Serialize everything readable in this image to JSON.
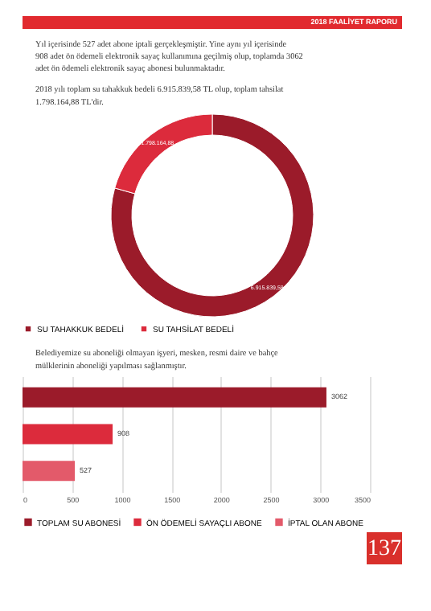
{
  "chart_data": [
    {
      "type": "donut",
      "categories": [
        "SU TAHAKKUK BEDELİ",
        "SU TAHSİLAT BEDELİ"
      ],
      "values": [
        6915839.58,
        1798164.88
      ],
      "colors": [
        "#9b1b2a",
        "#dc2b3c"
      ],
      "value_labels": [
        "6.915.839,58",
        "1.798.164,88"
      ],
      "legend": "bottom",
      "annotations": [
        "2018 FAALİYET RAPORU",
        "Yıl içerisinde 527 adet abone iptali gerçekleşmiştir. Yine aynı yıl içerisinde 908 adet ön ödemeli elektronik sayaç kullanımına geçilmiş olup, toplamda 3062 adet ön ödemeli elektronik sayaç abonesi bulunmaktadır.",
        "2018 yılı toplam su tahakkuk bedeli 6.915.839,58 TL olup, toplam tahsilat 1.798.164,88 TL'dir."
      ]
    },
    {
      "type": "bar",
      "orientation": "horizontal",
      "categories": [
        null,
        null,
        null
      ],
      "series": [
        {
          "name": "TOPLAM SU ABONESİ",
          "color": "#9b1b2a",
          "values": [
            3062,
            null,
            null
          ]
        },
        {
          "name": "ÖN ÖDEMELİ SAYAÇLI ABONE",
          "color": "#dc2b3c",
          "values": [
            null,
            908,
            null
          ]
        },
        {
          "name": "İPTAL OLAN ABONE",
          "color": "#e35a6a",
          "values": [
            null,
            null,
            527
          ]
        }
      ],
      "data_labels": true,
      "xlim": [
        0,
        3500
      ],
      "xticks": [
        0,
        500,
        1000,
        1500,
        2000,
        2500,
        3000,
        3500
      ],
      "grid": "x",
      "legend": "bottom",
      "tick_labels": "x",
      "annotations": [
        "Belediyemize su aboneliği olmayan işyeri, mesken, resmi daire ve bahçe mülklerinin aboneliği yapılması sağlanmıştır.",
        "137"
      ]
    }
  ]
}
